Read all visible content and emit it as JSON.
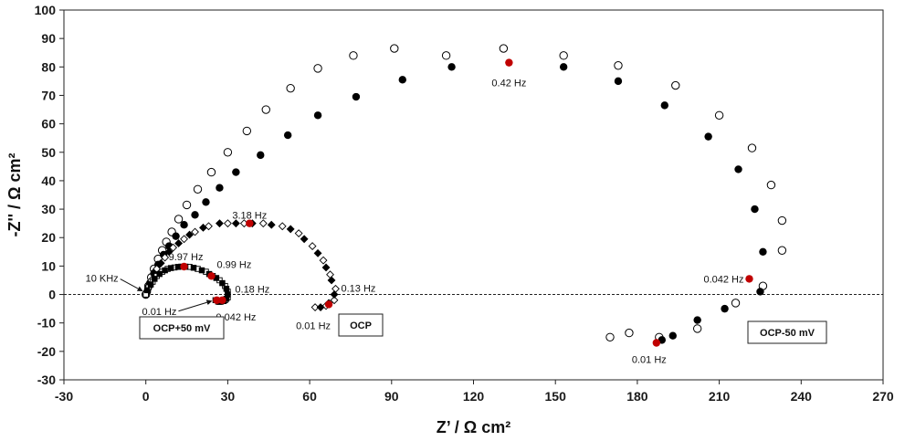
{
  "chart_data": {
    "type": "scatter",
    "title": "",
    "xlabel": "Z’ / Ω cm²",
    "ylabel": "-Z'' / Ω cm²",
    "xlim": [
      -30,
      270
    ],
    "ylim": [
      -30,
      100
    ],
    "xticks": [
      -30,
      0,
      30,
      60,
      90,
      120,
      150,
      180,
      210,
      240,
      270
    ],
    "yticks": [
      -30,
      -20,
      -10,
      0,
      10,
      20,
      30,
      40,
      50,
      60,
      70,
      80,
      90,
      100
    ],
    "zero_line": "dashed",
    "grid": false,
    "series": [
      {
        "name": "OCP-50 mV (open)",
        "marker": "open-circle",
        "points": [
          [
            0,
            0
          ],
          [
            1,
            3
          ],
          [
            2,
            6
          ],
          [
            3,
            9
          ],
          [
            4.5,
            12.5
          ],
          [
            6,
            15.5
          ],
          [
            7.5,
            18.5
          ],
          [
            9.5,
            22
          ],
          [
            12,
            26.5
          ],
          [
            15,
            31.5
          ],
          [
            19,
            37
          ],
          [
            24,
            43
          ],
          [
            30,
            50
          ],
          [
            37,
            57.5
          ],
          [
            44,
            65
          ],
          [
            53,
            72.5
          ],
          [
            63,
            79.5
          ],
          [
            76,
            84
          ],
          [
            91,
            86.5
          ],
          [
            110,
            84
          ],
          [
            131,
            86.5
          ],
          [
            153,
            84
          ],
          [
            173,
            80.5
          ],
          [
            194,
            73.5
          ],
          [
            210,
            63
          ],
          [
            222,
            51.5
          ],
          [
            229,
            38.5
          ],
          [
            233,
            26
          ],
          [
            233,
            15.5
          ],
          [
            226,
            3
          ],
          [
            216,
            -3
          ],
          [
            202,
            -12
          ],
          [
            188,
            -15
          ],
          [
            177,
            -13.5
          ],
          [
            170,
            -15
          ]
        ]
      },
      {
        "name": "OCP-50 mV (filled)",
        "marker": "filled-circle",
        "points": [
          [
            0.5,
            1
          ],
          [
            1.5,
            4
          ],
          [
            3,
            7.5
          ],
          [
            4.5,
            10.5
          ],
          [
            6.5,
            14
          ],
          [
            8.5,
            17
          ],
          [
            11,
            20.5
          ],
          [
            14,
            24.5
          ],
          [
            18,
            28
          ],
          [
            22,
            32.5
          ],
          [
            27,
            37.5
          ],
          [
            33,
            43
          ],
          [
            42,
            49
          ],
          [
            52,
            56
          ],
          [
            63,
            63
          ],
          [
            77,
            69.5
          ],
          [
            94,
            75.5
          ],
          [
            112,
            80
          ],
          [
            153,
            80
          ],
          [
            173,
            75
          ],
          [
            190,
            66.5
          ],
          [
            206,
            55.5
          ],
          [
            217,
            44
          ],
          [
            223,
            30
          ],
          [
            226,
            15
          ],
          [
            225,
            1
          ],
          [
            212,
            -5
          ],
          [
            202,
            -9
          ],
          [
            193,
            -14.5
          ],
          [
            189,
            -16
          ]
        ]
      },
      {
        "name": "OCP (open)",
        "marker": "open-diamond",
        "points": [
          [
            0,
            0
          ],
          [
            2,
            5
          ],
          [
            4,
            9
          ],
          [
            7,
            13
          ],
          [
            10,
            16.5
          ],
          [
            14,
            19.5
          ],
          [
            18,
            22
          ],
          [
            23,
            24
          ],
          [
            30,
            25
          ],
          [
            36,
            25
          ],
          [
            43,
            25
          ],
          [
            50,
            24
          ],
          [
            56,
            21.5
          ],
          [
            61,
            17
          ],
          [
            65,
            12
          ],
          [
            67.5,
            7
          ],
          [
            69.5,
            2
          ],
          [
            69,
            -2
          ],
          [
            66,
            -4
          ],
          [
            62,
            -4.5
          ]
        ]
      },
      {
        "name": "OCP (filled)",
        "marker": "filled-diamond",
        "points": [
          [
            1,
            3
          ],
          [
            3,
            7
          ],
          [
            5.5,
            11
          ],
          [
            8.5,
            15
          ],
          [
            12,
            18
          ],
          [
            16,
            21
          ],
          [
            21,
            23.5
          ],
          [
            27,
            25
          ],
          [
            33,
            25
          ],
          [
            39,
            25
          ],
          [
            46,
            24.5
          ],
          [
            53,
            23
          ],
          [
            58,
            19.5
          ],
          [
            63,
            14.5
          ],
          [
            66,
            9.5
          ],
          [
            68,
            5
          ],
          [
            69,
            0
          ],
          [
            67,
            -3
          ],
          [
            64,
            -4.5
          ]
        ]
      },
      {
        "name": "OCP+50 mV (open)",
        "marker": "open-square",
        "points": [
          [
            0,
            0
          ],
          [
            1,
            2.5
          ],
          [
            2.5,
            4.5
          ],
          [
            4,
            6.5
          ],
          [
            6,
            8
          ],
          [
            8,
            9
          ],
          [
            10.5,
            9.5
          ],
          [
            13,
            9.8
          ],
          [
            16,
            9.7
          ],
          [
            19,
            9
          ],
          [
            22,
            8
          ],
          [
            24.5,
            6.5
          ],
          [
            27,
            5
          ],
          [
            29,
            3
          ],
          [
            30,
            1
          ],
          [
            30,
            -1
          ],
          [
            29,
            -2
          ],
          [
            27.5,
            -2.5
          ],
          [
            26.5,
            -2.5
          ],
          [
            25.5,
            -2
          ]
        ]
      },
      {
        "name": "OCP+50 mV (filled)",
        "marker": "filled-square",
        "points": [
          [
            0.5,
            1.5
          ],
          [
            1.8,
            3.5
          ],
          [
            3.2,
            5.5
          ],
          [
            5,
            7.2
          ],
          [
            7,
            8.5
          ],
          [
            9.2,
            9.3
          ],
          [
            11.8,
            9.7
          ],
          [
            14.5,
            9.8
          ],
          [
            17.5,
            9.4
          ],
          [
            20.5,
            8.5
          ],
          [
            23.2,
            7.2
          ],
          [
            25.8,
            5.8
          ],
          [
            28,
            4
          ],
          [
            29.5,
            2
          ],
          [
            30,
            0
          ],
          [
            29.5,
            -1.5
          ],
          [
            28.5,
            -2.3
          ],
          [
            27,
            -2.6
          ]
        ]
      },
      {
        "name": "Marked frequencies",
        "marker": "red-dot",
        "color": "#c00000",
        "points": [
          [
            133,
            81.5
          ],
          [
            221,
            5.5
          ],
          [
            187,
            -17
          ],
          [
            38,
            25
          ],
          [
            67,
            -3.5
          ],
          [
            14,
            9.8
          ],
          [
            24,
            6.5
          ],
          [
            26,
            -2
          ],
          [
            28,
            -2
          ]
        ]
      }
    ],
    "annotations": [
      {
        "text": "0.42 Hz",
        "at": [
          133,
          81.5
        ]
      },
      {
        "text": "0.042 Hz",
        "at": [
          221,
          5.5
        ]
      },
      {
        "text": "0.01 Hz",
        "at": [
          187,
          -17
        ]
      },
      {
        "text": "3.18 Hz",
        "at": [
          38,
          25
        ]
      },
      {
        "text": "0.13 Hz",
        "at": [
          69.5,
          2
        ]
      },
      {
        "text": "0.01 Hz",
        "at": [
          62,
          -4.5
        ]
      },
      {
        "text": "9.97 Hz",
        "at": [
          14,
          9.8
        ]
      },
      {
        "text": "0.99 Hz",
        "at": [
          24,
          6.5
        ]
      },
      {
        "text": "0.18 Hz",
        "at": [
          30,
          1
        ]
      },
      {
        "text": "0.042 Hz",
        "at": [
          28,
          -2
        ]
      },
      {
        "text": "0.01 Hz",
        "at": [
          26,
          -2
        ]
      },
      {
        "text": "10 KHz",
        "at": [
          0,
          0
        ]
      }
    ],
    "boxed_labels": [
      {
        "text": "OCP+50 mV",
        "near": [
          14,
          -13
        ]
      },
      {
        "text": "OCP",
        "near": [
          79,
          -11
        ]
      },
      {
        "text": "OCP-50 mV",
        "near": [
          232,
          -13
        ]
      }
    ]
  }
}
